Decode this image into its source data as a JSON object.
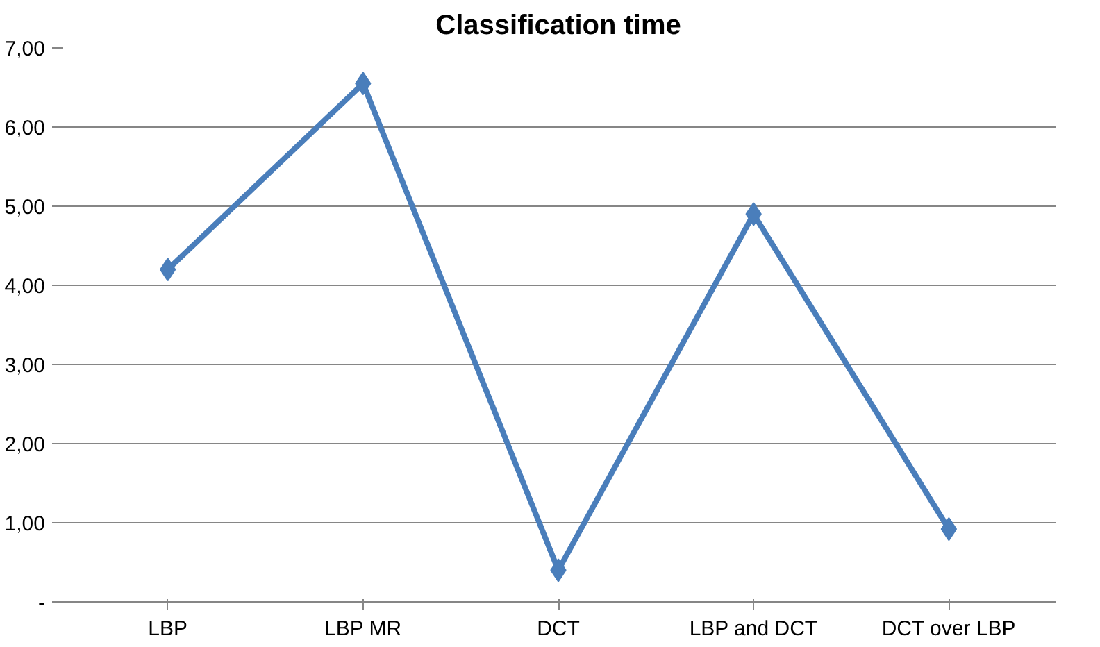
{
  "chart_data": {
    "type": "line",
    "title": "Classification time",
    "categories": [
      "LBP",
      "LBP MR",
      "DCT",
      "LBP and DCT",
      "DCT over LBP"
    ],
    "series": [
      {
        "color": "#4a7ebb",
        "values": [
          4.2,
          6.55,
          0.4,
          4.9,
          0.92
        ]
      }
    ],
    "ylim": [
      0,
      7
    ],
    "yticks": [
      {
        "value": 0,
        "label": "-"
      },
      {
        "value": 1,
        "label": "1,00"
      },
      {
        "value": 2,
        "label": "2,00"
      },
      {
        "value": 3,
        "label": "3,00"
      },
      {
        "value": 4,
        "label": "4,00"
      },
      {
        "value": 5,
        "label": "5,00"
      },
      {
        "value": 6,
        "label": "6,00"
      },
      {
        "value": 7,
        "label": "7,00"
      }
    ],
    "grid": "y",
    "marker": "diamond",
    "line_style": "solid"
  }
}
